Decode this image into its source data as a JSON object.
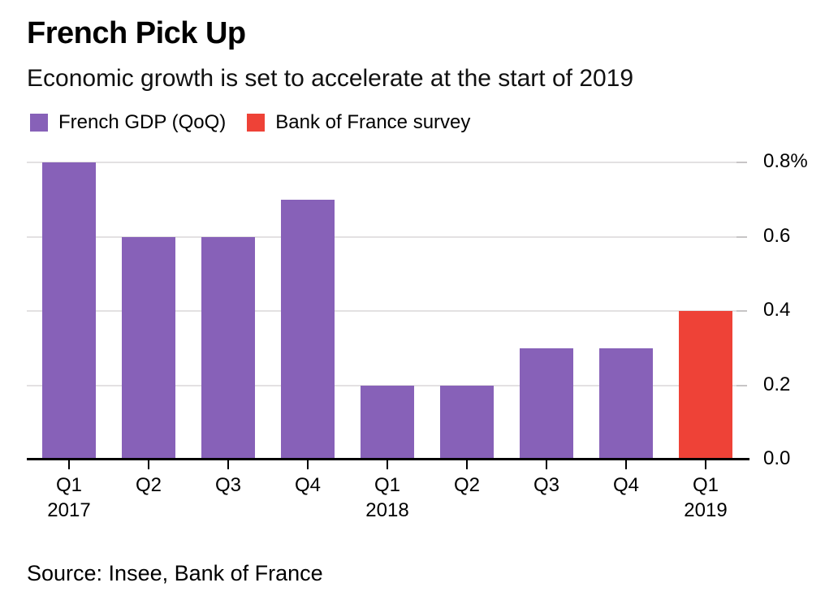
{
  "chart_data": {
    "type": "bar",
    "title": "French Pick Up",
    "subtitle": "Economic growth is set to accelerate at the start of 2019",
    "unit": "%",
    "xlabel": "",
    "ylabel": "",
    "ylim": [
      0,
      0.8
    ],
    "yticks": [
      0,
      0.2,
      0.4,
      0.6,
      0.8
    ],
    "ytick_labels": [
      "0.0",
      "0.2",
      "0.4",
      "0.6",
      "0.8%"
    ],
    "grid": "horizontal",
    "legend_position": "top-left",
    "series": [
      {
        "name": "French GDP (QoQ)",
        "color": "#8761b8"
      },
      {
        "name": "Bank of France survey",
        "color": "#ee4237"
      }
    ],
    "categories": [
      "Q1 2017",
      "Q2 2017",
      "Q3 2017",
      "Q4 2017",
      "Q1 2018",
      "Q2 2018",
      "Q3 2018",
      "Q4 2018",
      "Q1 2019"
    ],
    "bars": [
      {
        "id": "q1-2017",
        "label_lines": [
          "Q1",
          "2017"
        ],
        "value": 0.8,
        "series": 0
      },
      {
        "id": "q2-2017",
        "label_lines": [
          "Q2"
        ],
        "value": 0.6,
        "series": 0
      },
      {
        "id": "q3-2017",
        "label_lines": [
          "Q3"
        ],
        "value": 0.6,
        "series": 0
      },
      {
        "id": "q4-2017",
        "label_lines": [
          "Q4"
        ],
        "value": 0.7,
        "series": 0
      },
      {
        "id": "q1-2018",
        "label_lines": [
          "Q1",
          "2018"
        ],
        "value": 0.2,
        "series": 0
      },
      {
        "id": "q2-2018",
        "label_lines": [
          "Q2"
        ],
        "value": 0.2,
        "series": 0
      },
      {
        "id": "q3-2018",
        "label_lines": [
          "Q3"
        ],
        "value": 0.3,
        "series": 0
      },
      {
        "id": "q4-2018",
        "label_lines": [
          "Q4"
        ],
        "value": 0.3,
        "series": 0
      },
      {
        "id": "q1-2019",
        "label_lines": [
          "Q1",
          "2019"
        ],
        "value": 0.4,
        "series": 1
      }
    ],
    "source": "Source: Insee, Bank of France"
  }
}
